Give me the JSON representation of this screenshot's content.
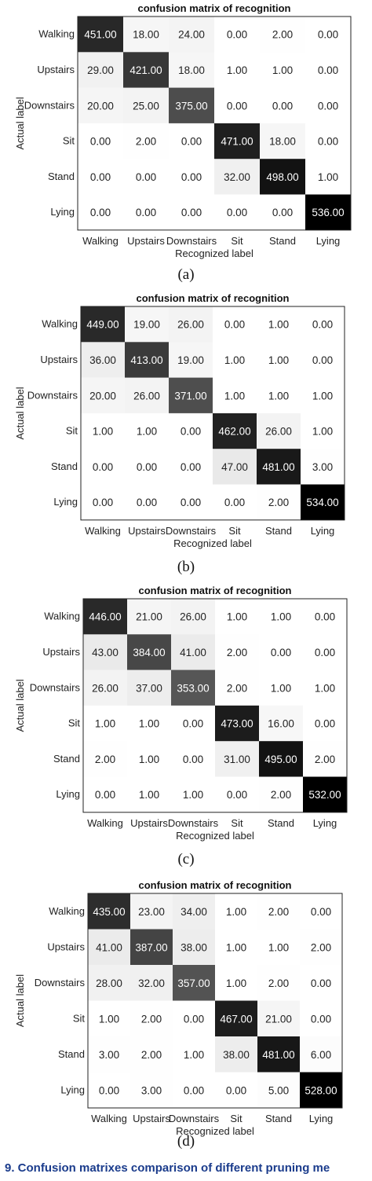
{
  "figure_caption": "9. Confusion matrixes comparison of different pruning me",
  "chart_data": [
    {
      "type": "heatmap",
      "panel_label": "(a)",
      "title": "confusion matrix of recognition",
      "xlabel": "Recognized label",
      "ylabel": "Actual label",
      "categories": [
        "Walking",
        "Upstairs",
        "Downstairs",
        "Sit",
        "Stand",
        "Lying"
      ],
      "values": [
        [
          451,
          18,
          24,
          0,
          2,
          0
        ],
        [
          29,
          421,
          18,
          1,
          1,
          0
        ],
        [
          20,
          25,
          375,
          0,
          0,
          0
        ],
        [
          0,
          2,
          0,
          471,
          18,
          0
        ],
        [
          0,
          0,
          0,
          32,
          498,
          1
        ],
        [
          0,
          0,
          0,
          0,
          0,
          536
        ]
      ]
    },
    {
      "type": "heatmap",
      "panel_label": "(b)",
      "title": "confusion matrix of recognition",
      "xlabel": "Recognized label",
      "ylabel": "Actual label",
      "categories": [
        "Walking",
        "Upstairs",
        "Downstairs",
        "Sit",
        "Stand",
        "Lying"
      ],
      "values": [
        [
          449,
          19,
          26,
          0,
          1,
          0
        ],
        [
          36,
          413,
          19,
          1,
          1,
          0
        ],
        [
          20,
          26,
          371,
          1,
          1,
          1
        ],
        [
          1,
          1,
          0,
          462,
          26,
          1
        ],
        [
          0,
          0,
          0,
          47,
          481,
          3
        ],
        [
          0,
          0,
          0,
          0,
          2,
          534
        ]
      ]
    },
    {
      "type": "heatmap",
      "panel_label": "(c)",
      "title": "confusion matrix of recognition",
      "xlabel": "Recognized label",
      "ylabel": "Actual label",
      "categories": [
        "Walking",
        "Upstairs",
        "Downstairs",
        "Sit",
        "Stand",
        "Lying"
      ],
      "values": [
        [
          446,
          21,
          26,
          1,
          1,
          0
        ],
        [
          43,
          384,
          41,
          2,
          0,
          0
        ],
        [
          26,
          37,
          353,
          2,
          1,
          1
        ],
        [
          1,
          1,
          0,
          473,
          16,
          0
        ],
        [
          2,
          1,
          0,
          31,
          495,
          2
        ],
        [
          0,
          1,
          1,
          0,
          2,
          532
        ]
      ]
    },
    {
      "type": "heatmap",
      "panel_label": "(d)",
      "title": "confusion matrix of recognition",
      "xlabel": "Recognized label",
      "ylabel": "Actual label",
      "categories": [
        "Walking",
        "Upstairs",
        "Downstairs",
        "Sit",
        "Stand",
        "Lying"
      ],
      "values": [
        [
          435,
          23,
          34,
          1,
          2,
          0
        ],
        [
          41,
          387,
          38,
          1,
          1,
          2
        ],
        [
          28,
          32,
          357,
          1,
          2,
          0
        ],
        [
          1,
          2,
          0,
          467,
          21,
          0
        ],
        [
          3,
          2,
          1,
          38,
          481,
          6
        ],
        [
          0,
          3,
          0,
          0,
          5,
          528
        ]
      ]
    }
  ]
}
